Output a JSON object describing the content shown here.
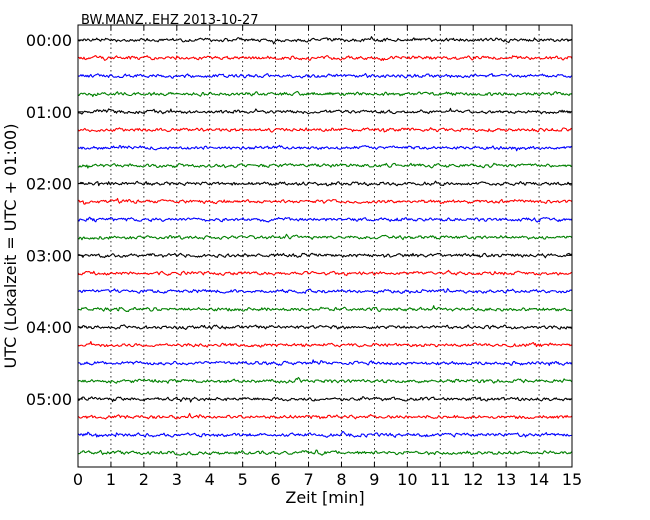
{
  "chart_data": {
    "type": "line",
    "title": "BW.MANZ..EHZ 2013-10-27",
    "xlabel": "Zeit  [min]",
    "ylabel": "UTC (Lokalzeit = UTC + 01:00)",
    "xlim": [
      0,
      15
    ],
    "x_ticks": [
      0,
      1,
      2,
      3,
      4,
      5,
      6,
      7,
      8,
      9,
      10,
      11,
      12,
      13,
      14,
      15
    ],
    "y_tick_labels": [
      "00:00",
      "01:00",
      "02:00",
      "03:00",
      "04:00",
      "05:00"
    ],
    "grid": "vertical dotted at each minute",
    "trace_interval_minutes": 15,
    "trace_count": 24,
    "trace_colors": [
      "#000000",
      "#ff0000",
      "#0000ff",
      "#008000"
    ],
    "series": [
      {
        "start": "00:00",
        "color": "#000000"
      },
      {
        "start": "00:15",
        "color": "#ff0000"
      },
      {
        "start": "00:30",
        "color": "#0000ff"
      },
      {
        "start": "00:45",
        "color": "#008000"
      },
      {
        "start": "01:00",
        "color": "#000000"
      },
      {
        "start": "01:15",
        "color": "#ff0000"
      },
      {
        "start": "01:30",
        "color": "#0000ff"
      },
      {
        "start": "01:45",
        "color": "#008000"
      },
      {
        "start": "02:00",
        "color": "#000000"
      },
      {
        "start": "02:15",
        "color": "#ff0000"
      },
      {
        "start": "02:30",
        "color": "#0000ff"
      },
      {
        "start": "02:45",
        "color": "#008000"
      },
      {
        "start": "03:00",
        "color": "#000000"
      },
      {
        "start": "03:15",
        "color": "#ff0000"
      },
      {
        "start": "03:30",
        "color": "#0000ff"
      },
      {
        "start": "03:45",
        "color": "#008000"
      },
      {
        "start": "04:00",
        "color": "#000000"
      },
      {
        "start": "04:15",
        "color": "#ff0000"
      },
      {
        "start": "04:30",
        "color": "#0000ff"
      },
      {
        "start": "04:45",
        "color": "#008000"
      },
      {
        "start": "05:00",
        "color": "#000000"
      },
      {
        "start": "05:15",
        "color": "#ff0000"
      },
      {
        "start": "05:30",
        "color": "#0000ff"
      },
      {
        "start": "05:45",
        "color": "#008000"
      }
    ]
  }
}
